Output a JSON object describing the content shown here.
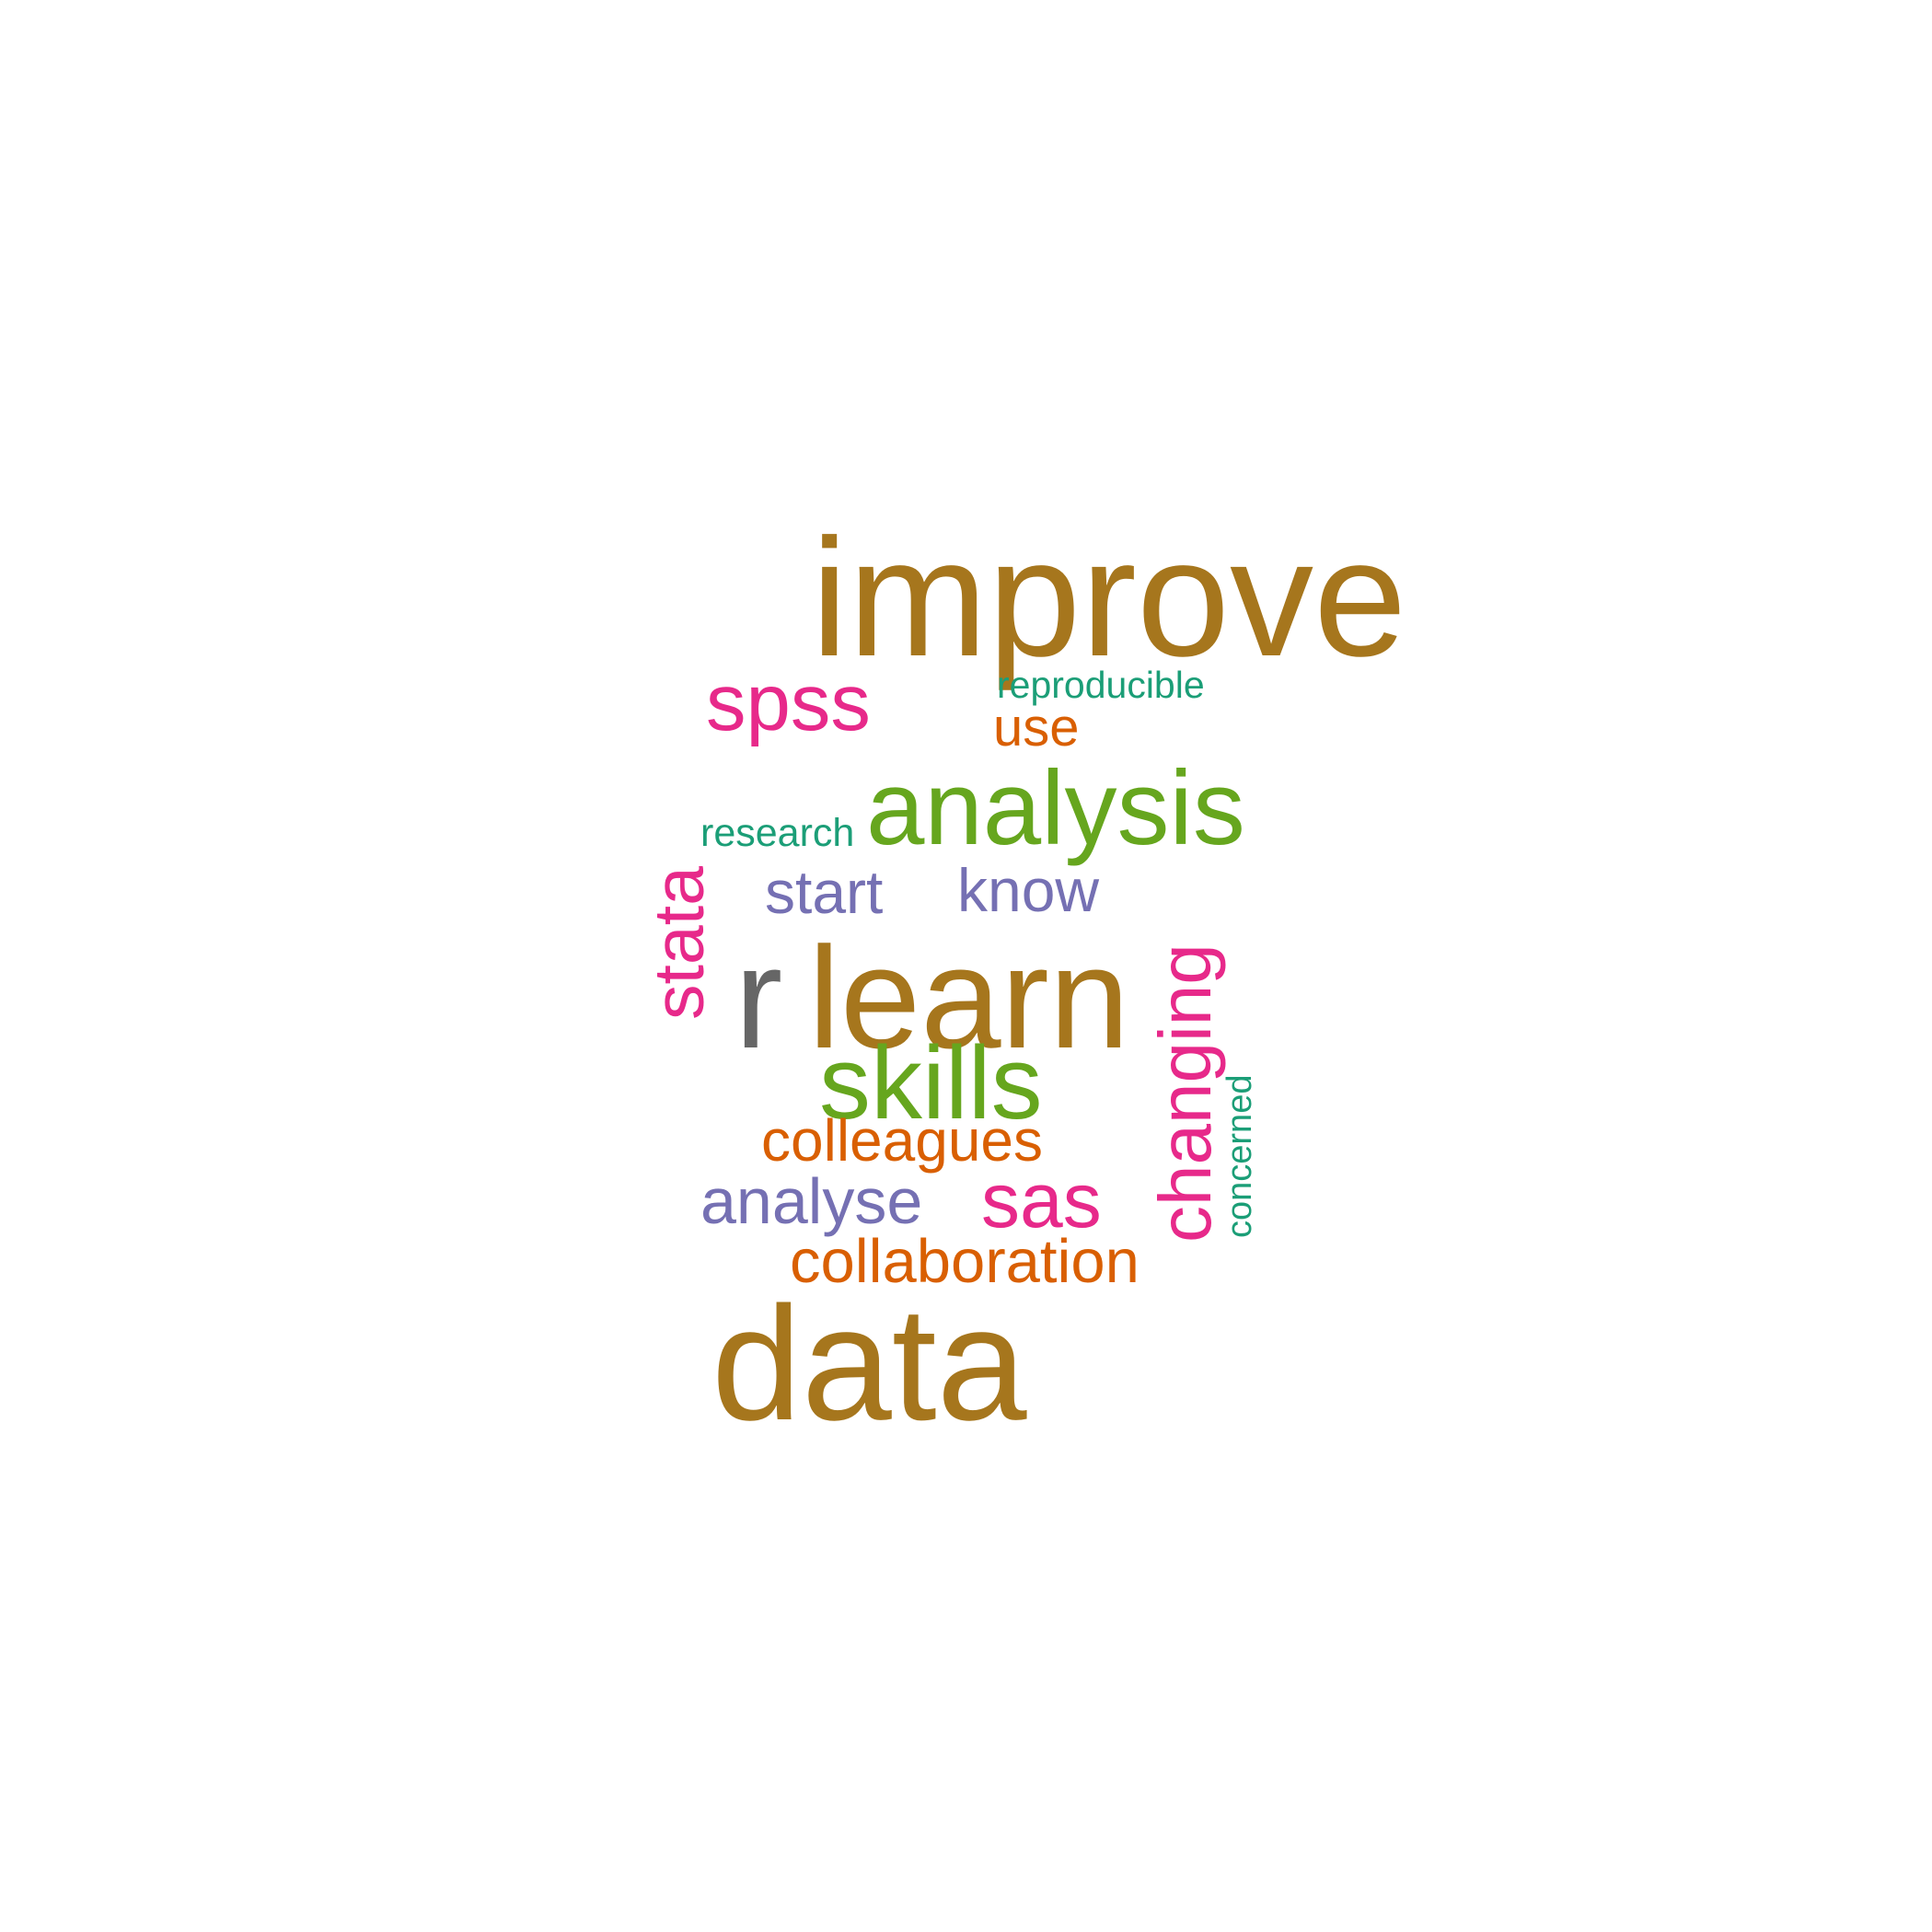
{
  "colors": {
    "background": "#ffffff",
    "brown": "#a6761d",
    "green": "#66a61e",
    "magenta": "#e7298a",
    "purple": "#7570b3",
    "orange": "#d95f02",
    "teal": "#1b9e77",
    "gray": "#666666"
  },
  "words": {
    "improve": {
      "text": "improve",
      "color": "#a6761d"
    },
    "spss": {
      "text": "spss",
      "color": "#e7298a"
    },
    "reproducible": {
      "text": "reproducible",
      "color": "#1b9e77"
    },
    "use": {
      "text": "use",
      "color": "#d95f02"
    },
    "analysis": {
      "text": "analysis",
      "color": "#66a61e"
    },
    "research": {
      "text": "research",
      "color": "#1b9e77"
    },
    "stata": {
      "text": "stata",
      "color": "#e7298a"
    },
    "start": {
      "text": "start",
      "color": "#7570b3"
    },
    "know": {
      "text": "know",
      "color": "#7570b3"
    },
    "changing": {
      "text": "changing",
      "color": "#e7298a"
    },
    "r": {
      "text": "r",
      "color": "#666666"
    },
    "learn": {
      "text": "learn",
      "color": "#a6761d"
    },
    "skills": {
      "text": "skills",
      "color": "#66a61e"
    },
    "concerned": {
      "text": "concerned",
      "color": "#1b9e77"
    },
    "colleagues": {
      "text": "colleagues",
      "color": "#d95f02"
    },
    "analyse": {
      "text": "analyse",
      "color": "#7570b3"
    },
    "sas": {
      "text": "sas",
      "color": "#e7298a"
    },
    "collaboration": {
      "text": "collaboration",
      "color": "#d95f02"
    },
    "data": {
      "text": "data",
      "color": "#a6761d"
    }
  }
}
